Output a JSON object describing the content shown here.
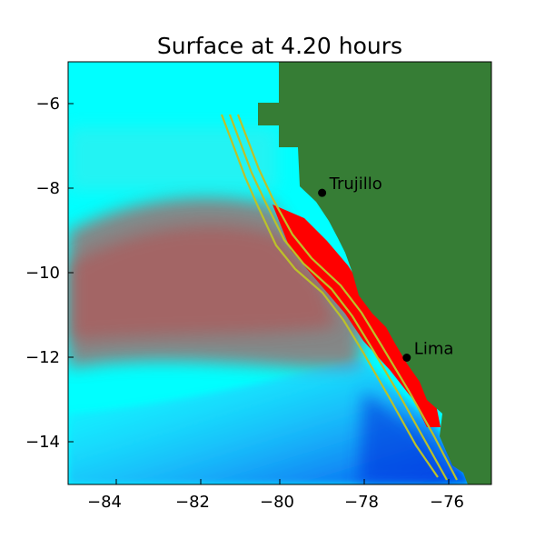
{
  "title": "Surface at 4.20 hours",
  "axes": {
    "x_ticks": [
      "−84",
      "−82",
      "−80",
      "−78",
      "−76"
    ],
    "y_ticks": [
      "−6",
      "−8",
      "−10",
      "−12",
      "−14"
    ]
  },
  "map": {
    "lon_range": [
      -85,
      -75
    ],
    "lat_range": [
      -15,
      -5
    ],
    "colors": {
      "land": "#367d35",
      "ocean_base": "#00ffff",
      "wave_high": "#ff0000",
      "wave_low": "#0055ee",
      "fault_outline": "#bcc12a"
    },
    "cities": [
      {
        "name": "Trujillo",
        "lon": -79.0,
        "lat": -8.1
      },
      {
        "name": "Lima",
        "lon": -77.0,
        "lat": -12.0
      }
    ]
  }
}
